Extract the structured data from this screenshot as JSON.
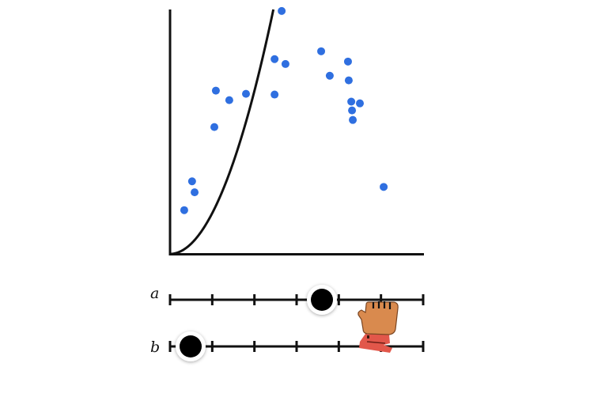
{
  "chart_data": {
    "type": "scatter",
    "title": "",
    "xlabel": "",
    "ylabel": "",
    "grid": false,
    "xlim": [
      0,
      10
    ],
    "ylim": [
      0,
      10
    ],
    "points": [
      {
        "x": 0.56,
        "y": 1.79
      },
      {
        "x": 0.87,
        "y": 2.97
      },
      {
        "x": 0.97,
        "y": 2.52
      },
      {
        "x": 1.75,
        "y": 5.19
      },
      {
        "x": 1.81,
        "y": 6.68
      },
      {
        "x": 2.34,
        "y": 6.29
      },
      {
        "x": 3.0,
        "y": 6.55
      },
      {
        "x": 4.13,
        "y": 6.52
      },
      {
        "x": 4.13,
        "y": 7.97
      },
      {
        "x": 4.41,
        "y": 9.94
      },
      {
        "x": 4.56,
        "y": 7.77
      },
      {
        "x": 5.97,
        "y": 8.29
      },
      {
        "x": 6.31,
        "y": 7.29
      },
      {
        "x": 7.03,
        "y": 7.87
      },
      {
        "x": 7.06,
        "y": 7.1
      },
      {
        "x": 7.16,
        "y": 6.23
      },
      {
        "x": 7.19,
        "y": 5.87
      },
      {
        "x": 7.22,
        "y": 5.48
      },
      {
        "x": 7.5,
        "y": 6.16
      },
      {
        "x": 8.44,
        "y": 2.74
      }
    ],
    "curve": {
      "type": "power",
      "a": 0.6,
      "b": 2.0
    },
    "point_color": "#2f6fe0",
    "curve_color": "#111111"
  },
  "sliders": [
    {
      "label": "a",
      "value": 0.6,
      "min": 0,
      "max": 1,
      "ticks": 7
    },
    {
      "label": "b",
      "value": 2.0,
      "min": 2,
      "max": 8,
      "ticks": 7
    }
  ],
  "colors": {
    "axis": "#111111",
    "knob": "#000000",
    "knob_ring": "#ffffff",
    "hand_skin": "#d98a4e",
    "hand_cuff": "#e2574a"
  },
  "cursor": {
    "icon": "grab-hand-icon",
    "target": "slider-a-knob"
  }
}
